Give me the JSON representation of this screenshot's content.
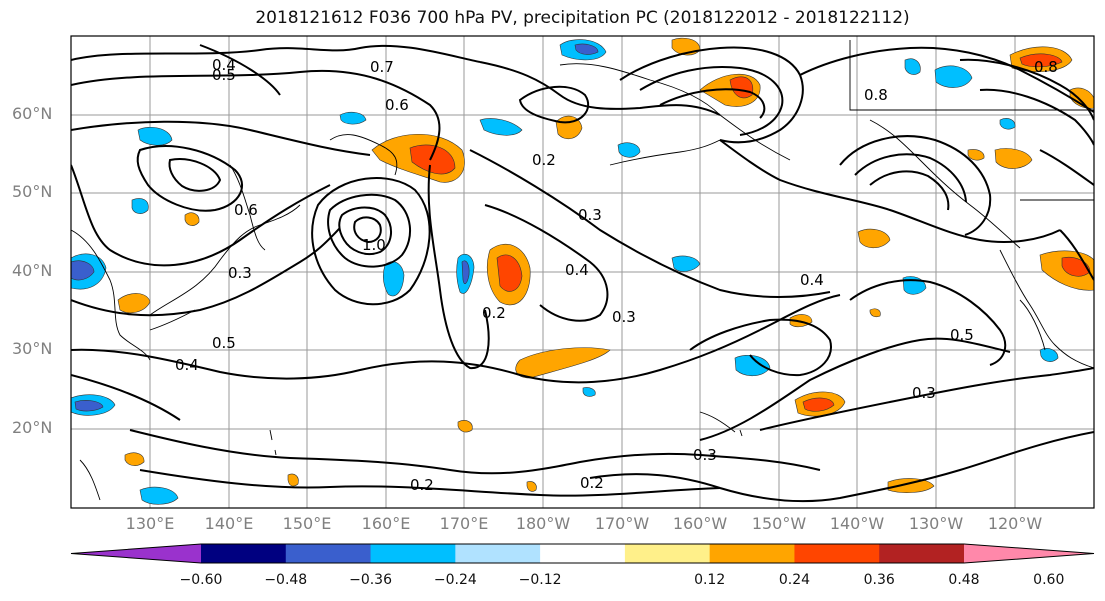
{
  "title": "2018121612 F036 700 hPa PV, precipitation PC (2018122012 - 2018122112)",
  "lat_labels": [
    "60°N",
    "50°N",
    "40°N",
    "30°N",
    "20°N"
  ],
  "lon_labels": [
    "130°E",
    "140°E",
    "150°E",
    "160°E",
    "170°E",
    "180°W",
    "170°W",
    "160°W",
    "150°W",
    "140°W",
    "130°W",
    "120°W"
  ],
  "colorbar": {
    "ticks": [
      "−0.60",
      "−0.48",
      "−0.36",
      "−0.24",
      "−0.12",
      "0.12",
      "0.24",
      "0.36",
      "0.48",
      "0.60"
    ],
    "colors": [
      "#9a32cd",
      "#000080",
      "#3a5fcd",
      "#00bfff",
      "#b0e2ff",
      "#ffffff",
      "#fff08a",
      "#ffa500",
      "#ff4500",
      "#b22222",
      "#ff88aa"
    ]
  },
  "contour_labels": [
    "0.4",
    "0.5",
    "0.6",
    "0.7",
    "0.8",
    "1.0",
    "0.3",
    "0.2",
    "0.3",
    "0.4",
    "0.2",
    "0.3",
    "0.5",
    "0.4",
    "0.3",
    "0.2",
    "0.2",
    "0.3",
    "0.4",
    "0.5",
    "0.6",
    "0.8"
  ]
}
